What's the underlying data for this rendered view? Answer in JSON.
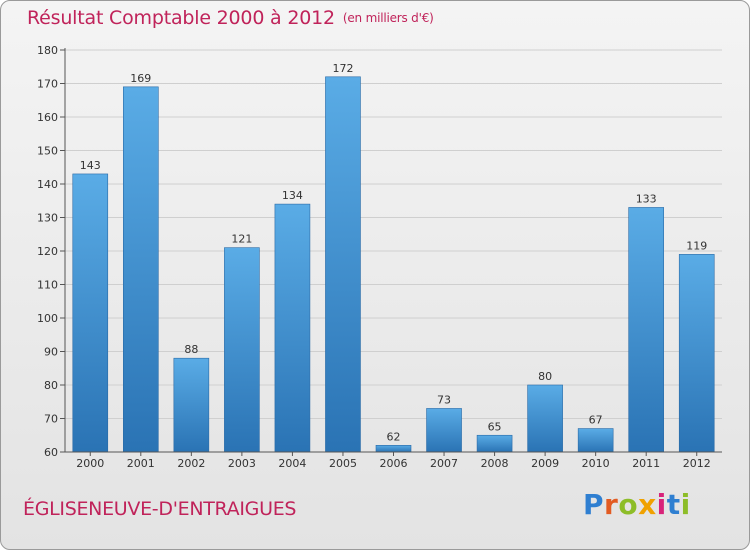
{
  "header": {
    "title": "Résultat Comptable 2000 à 2012",
    "unit": "(en milliers d'€)"
  },
  "footer": {
    "commune": "ÉGLISENEUVE-D'ENTRAIGUES",
    "logo_text": "Proxiti"
  },
  "colors": {
    "title": "#c0235a",
    "bar_top": "#5aace6",
    "bar_bottom": "#2a73b4",
    "logo_letters": [
      "#2f7fd1",
      "#e25b22",
      "#8dbd28",
      "#f0a100",
      "#d8237a",
      "#2f7fd1",
      "#8dbd28"
    ]
  },
  "chart_data": {
    "type": "bar",
    "title": "Résultat Comptable 2000 à 2012",
    "subtitle": "(en milliers d'€)",
    "xlabel": "",
    "ylabel": "",
    "categories": [
      "2000",
      "2001",
      "2002",
      "2003",
      "2004",
      "2005",
      "2006",
      "2007",
      "2008",
      "2009",
      "2010",
      "2011",
      "2012"
    ],
    "values": [
      143,
      169,
      88,
      121,
      134,
      172,
      62,
      73,
      65,
      80,
      67,
      133,
      119
    ],
    "ylim": [
      60,
      180
    ],
    "yticks": [
      60,
      70,
      80,
      90,
      100,
      110,
      120,
      130,
      140,
      150,
      160,
      170,
      180
    ],
    "grid": true,
    "legend": "none"
  }
}
